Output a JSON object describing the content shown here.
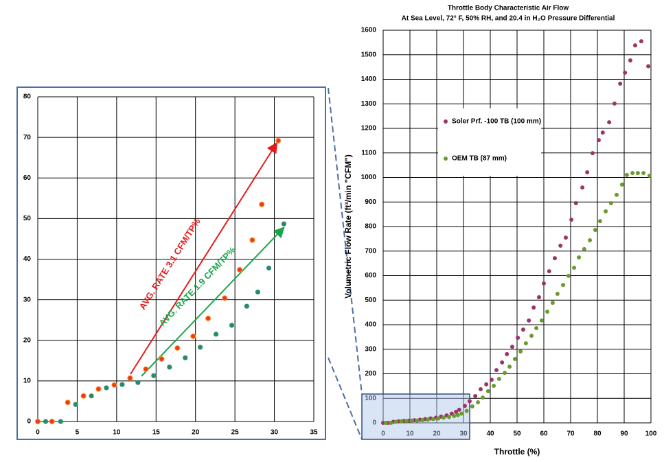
{
  "chart_data": [
    {
      "type": "scatter",
      "title": "Throttle Body Characteristic Air Flow",
      "subtitle": "At Sea Level, 72° F, 50% RH, and 20.4 in H₂O Pressure Differential",
      "x_label": "Throttle (%)",
      "y_label": "Volumetric Flow Rate (ft³/min \"CFM\")",
      "xlim": [
        0,
        100
      ],
      "xticks": [
        0,
        10,
        20,
        30,
        40,
        50,
        60,
        70,
        80,
        90,
        100
      ],
      "ylim": [
        0,
        1600
      ],
      "yticks": [
        0,
        100,
        200,
        300,
        400,
        500,
        600,
        700,
        800,
        900,
        1000,
        1100,
        1200,
        1300,
        1400,
        1500,
        1600
      ],
      "grid": true,
      "legend": "upper left",
      "series": [
        {
          "name": "Soler Prf. -100 TB (100 mm)",
          "color": "#9b3566",
          "x": [
            0,
            1.8,
            3.8,
            5.8,
            7.7,
            9.7,
            11.7,
            13.7,
            15.7,
            17.7,
            19.7,
            21.6,
            23.7,
            25.6,
            27.2,
            28.4,
            30.5,
            32.3,
            34.4,
            36.4,
            38.5,
            40.5,
            42.3,
            44.4,
            46.2,
            48.2,
            50.3,
            52.3,
            54.4,
            56.2,
            58.2,
            60,
            62,
            64.1,
            66.2,
            68.2,
            70.3,
            72,
            74.4,
            76.2,
            78.2,
            80.5,
            82,
            84.4,
            86.4,
            88.5,
            90.3,
            92.3,
            94.1,
            96.4,
            99
          ],
          "values": [
            0,
            0,
            4.7,
            6.3,
            8,
            9,
            10.7,
            12.9,
            15.4,
            18.1,
            21,
            25.4,
            30.4,
            37.4,
            44.7,
            53.5,
            69.2,
            88,
            109,
            137,
            157,
            176,
            215,
            246,
            280,
            310,
            347,
            380,
            417,
            470,
            512,
            568,
            618,
            671,
            722,
            755,
            828,
            895,
            959,
            1021,
            1099,
            1152,
            1183,
            1225,
            1301,
            1382,
            1427,
            1477,
            1538,
            1555,
            1453
          ]
        },
        {
          "name": "OEM TB (87 mm)",
          "color": "#6b9a2e",
          "x": [
            1,
            2.9,
            4.8,
            6.8,
            8.7,
            10.7,
            12.7,
            14.7,
            16.7,
            18.7,
            20.6,
            22.6,
            24.6,
            26.5,
            27.9,
            29.3,
            31.2,
            33.3,
            35.4,
            37.2,
            39.2,
            41.3,
            43.3,
            45.4,
            47.2,
            49.2,
            51.3,
            53.3,
            55.4,
            57.2,
            59.2,
            61.3,
            63.3,
            65.1,
            67.2,
            69.2,
            71.3,
            73.1,
            75.1,
            77.2,
            79.2,
            81,
            83.1,
            85.1,
            87.2,
            89.2,
            91,
            93.1,
            95.1,
            97.2,
            99.5
          ],
          "values": [
            0,
            0,
            4.2,
            6.3,
            8.3,
            9.1,
            9.6,
            11.3,
            13.4,
            15.7,
            18.3,
            21.5,
            23.7,
            28.4,
            31.9,
            37.8,
            48.7,
            67,
            84,
            103,
            129,
            151,
            179,
            204,
            229,
            260,
            291,
            324,
            355,
            386,
            417,
            453,
            489,
            526,
            562,
            599,
            632,
            674,
            708,
            744,
            786,
            822,
            862,
            895,
            929,
            971,
            1010,
            1018,
            1018,
            1018,
            1007
          ]
        }
      ]
    },
    {
      "type": "scatter",
      "xlim": [
        0,
        35
      ],
      "xticks": [
        0,
        5,
        10,
        15,
        20,
        25,
        30,
        35
      ],
      "ylim": [
        0,
        80
      ],
      "yticks": [
        0,
        10,
        20,
        30,
        40,
        50,
        60,
        70,
        80
      ],
      "grid": true,
      "series": [
        {
          "color": "#f03a10",
          "x": [
            0,
            1.8,
            3.8,
            5.8,
            7.7,
            9.7,
            11.7,
            13.7,
            15.7,
            17.7,
            19.7,
            21.6,
            23.7,
            25.6,
            27.2,
            28.4,
            30.5
          ],
          "values": [
            0,
            0,
            4.7,
            6.3,
            8,
            9,
            10.7,
            12.9,
            15.4,
            18.1,
            21,
            25.4,
            30.4,
            37.4,
            44.7,
            53.5,
            69.2
          ]
        },
        {
          "color": "#2a8a6c",
          "x": [
            1,
            2.9,
            4.8,
            6.8,
            8.7,
            10.7,
            12.7,
            14.7,
            16.7,
            18.7,
            20.6,
            22.6,
            24.6,
            26.5,
            27.9,
            29.3,
            31.2
          ],
          "values": [
            0,
            0,
            4.2,
            6.3,
            8.3,
            9.1,
            9.6,
            11.3,
            13.4,
            15.7,
            18.3,
            21.5,
            23.7,
            28.4,
            31.9,
            37.8,
            48.7
          ]
        }
      ],
      "annotations": [
        {
          "text": "AVG. RATE 3.1 CFM/TP%",
          "color": "#e41a1a"
        },
        {
          "text": "AVG. RATE 1.9 CFM/TP%",
          "color": "#19a64a"
        }
      ]
    }
  ]
}
